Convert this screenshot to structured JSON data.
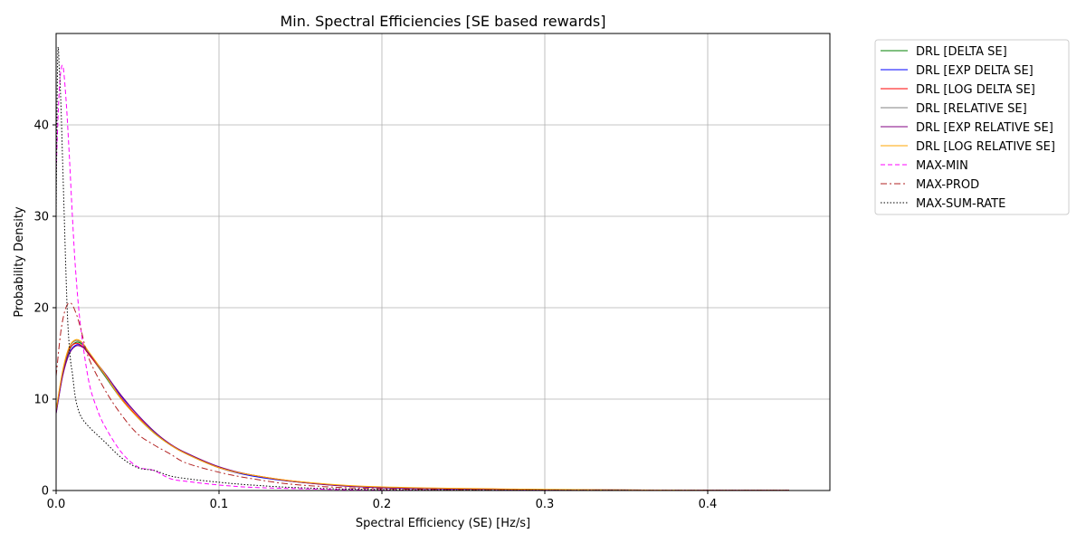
{
  "chart_data": {
    "type": "line",
    "title": "Min. Spectral Efficiencies [SE based rewards]",
    "xlabel": "Spectral Efficiency (SE) [Hz/s]",
    "ylabel": "Probability Density",
    "xlim": [
      0,
      0.475
    ],
    "ylim": [
      0,
      50
    ],
    "xticks": [
      0,
      0.1,
      0.2,
      0.3,
      0.4
    ],
    "xtick_labels": [
      "0.0",
      "0.1",
      "0.2",
      "0.3",
      "0.4"
    ],
    "yticks": [
      0,
      10,
      20,
      30,
      40
    ],
    "ytick_labels": [
      "0",
      "10",
      "20",
      "30",
      "40"
    ],
    "grid": true,
    "legend_position": "outside-right",
    "series": [
      {
        "name": "DRL [DELTA SE]",
        "color": "#008000",
        "dash": "solid",
        "x": [
          0,
          0.004,
          0.008,
          0.012,
          0.016,
          0.02,
          0.03,
          0.04,
          0.05,
          0.06,
          0.07,
          0.08,
          0.1,
          0.12,
          0.15,
          0.2,
          0.3,
          0.4,
          0.45
        ],
        "y": [
          8.5,
          12.8,
          15.3,
          16.2,
          16.0,
          15.0,
          12.5,
          10.0,
          8.0,
          6.3,
          5.0,
          4.0,
          2.5,
          1.7,
          0.9,
          0.35,
          0.1,
          0.03,
          0.02
        ]
      },
      {
        "name": "DRL [EXP DELTA SE]",
        "color": "#0000ff",
        "dash": "solid",
        "x": [
          0,
          0.004,
          0.008,
          0.012,
          0.016,
          0.02,
          0.03,
          0.04,
          0.05,
          0.06,
          0.07,
          0.08,
          0.1,
          0.12,
          0.15,
          0.2,
          0.3,
          0.4,
          0.45
        ],
        "y": [
          8.5,
          12.6,
          15.0,
          15.9,
          15.8,
          15.0,
          12.8,
          10.3,
          8.3,
          6.5,
          5.0,
          4.1,
          2.5,
          1.6,
          0.9,
          0.3,
          0.1,
          0.03,
          0.02
        ]
      },
      {
        "name": "DRL [LOG DELTA SE]",
        "color": "#ff0000",
        "dash": "solid",
        "x": [
          0,
          0.004,
          0.008,
          0.012,
          0.016,
          0.02,
          0.03,
          0.04,
          0.05,
          0.06,
          0.07,
          0.08,
          0.1,
          0.12,
          0.15,
          0.2,
          0.3,
          0.4,
          0.45
        ],
        "y": [
          8.6,
          12.9,
          15.4,
          16.1,
          15.8,
          14.9,
          12.6,
          10.1,
          8.1,
          6.4,
          5.0,
          4.0,
          2.5,
          1.7,
          0.95,
          0.35,
          0.1,
          0.03,
          0.02
        ]
      },
      {
        "name": "DRL [RELATIVE SE]",
        "color": "#808080",
        "dash": "solid",
        "x": [
          0,
          0.004,
          0.008,
          0.012,
          0.016,
          0.02,
          0.03,
          0.04,
          0.05,
          0.06,
          0.07,
          0.08,
          0.1,
          0.12,
          0.15,
          0.2,
          0.3,
          0.4,
          0.45
        ],
        "y": [
          8.7,
          13.0,
          15.6,
          16.4,
          16.1,
          15.1,
          12.6,
          10.0,
          8.0,
          6.4,
          5.0,
          4.0,
          2.5,
          1.7,
          0.9,
          0.35,
          0.1,
          0.03,
          0.02
        ]
      },
      {
        "name": "DRL [EXP RELATIVE SE]",
        "color": "#800080",
        "dash": "solid",
        "x": [
          0,
          0.004,
          0.008,
          0.012,
          0.016,
          0.02,
          0.03,
          0.04,
          0.05,
          0.06,
          0.07,
          0.08,
          0.1,
          0.12,
          0.15,
          0.2,
          0.3,
          0.4,
          0.45
        ],
        "y": [
          8.4,
          12.5,
          14.9,
          15.8,
          15.7,
          15.0,
          12.8,
          10.4,
          8.3,
          6.5,
          5.1,
          4.1,
          2.6,
          1.7,
          0.9,
          0.3,
          0.1,
          0.03,
          0.02
        ]
      },
      {
        "name": "DRL [LOG RELATIVE SE]",
        "color": "#ffa500",
        "dash": "solid",
        "x": [
          0,
          0.004,
          0.008,
          0.012,
          0.016,
          0.02,
          0.03,
          0.04,
          0.05,
          0.06,
          0.07,
          0.08,
          0.1,
          0.12,
          0.15,
          0.2,
          0.3,
          0.4,
          0.45
        ],
        "y": [
          8.8,
          13.1,
          15.7,
          16.5,
          16.2,
          15.2,
          12.7,
          10.0,
          8.0,
          6.3,
          5.0,
          4.0,
          2.5,
          1.7,
          0.95,
          0.4,
          0.12,
          0.03,
          0.02
        ]
      },
      {
        "name": "MAX-MIN",
        "color": "#ff00ff",
        "dash": "5,3",
        "x": [
          0,
          0.002,
          0.004,
          0.006,
          0.008,
          0.01,
          0.012,
          0.015,
          0.02,
          0.025,
          0.03,
          0.04,
          0.05,
          0.06,
          0.07,
          0.08,
          0.1,
          0.12,
          0.15,
          0.2,
          0.3,
          0.45
        ],
        "y": [
          35,
          44,
          46.5,
          43,
          37,
          30,
          24,
          18,
          12,
          9,
          7,
          4.2,
          2.6,
          2.2,
          1.3,
          1.0,
          0.6,
          0.35,
          0.2,
          0.05,
          0.02,
          0.01
        ]
      },
      {
        "name": "MAX-PROD",
        "color": "#b22222",
        "dash": "7,3,2,3",
        "x": [
          0,
          0.003,
          0.006,
          0.009,
          0.012,
          0.015,
          0.02,
          0.03,
          0.04,
          0.05,
          0.06,
          0.07,
          0.08,
          0.1,
          0.12,
          0.15,
          0.2,
          0.3,
          0.45
        ],
        "y": [
          12.5,
          17.5,
          20.0,
          20.5,
          19.5,
          17.8,
          14.5,
          11.0,
          8.3,
          6.2,
          5.0,
          4.0,
          3.0,
          2.0,
          1.3,
          0.6,
          0.2,
          0.05,
          0.02
        ]
      },
      {
        "name": "MAX-SUM-RATE",
        "color": "#000000",
        "dash": "1.5,2",
        "x": [
          0,
          0.001,
          0.002,
          0.003,
          0.004,
          0.005,
          0.006,
          0.007,
          0.008,
          0.009,
          0.01,
          0.012,
          0.015,
          0.02,
          0.03,
          0.04,
          0.05,
          0.06,
          0.07,
          0.08,
          0.1,
          0.12,
          0.15,
          0.2,
          0.3,
          0.45
        ],
        "y": [
          30,
          47.5,
          46,
          42,
          36,
          30,
          24,
          19,
          16,
          14,
          12.8,
          10,
          8.2,
          7.0,
          5.3,
          3.6,
          2.5,
          2.2,
          1.6,
          1.3,
          0.9,
          0.6,
          0.3,
          0.1,
          0.03,
          0.01
        ]
      }
    ]
  }
}
